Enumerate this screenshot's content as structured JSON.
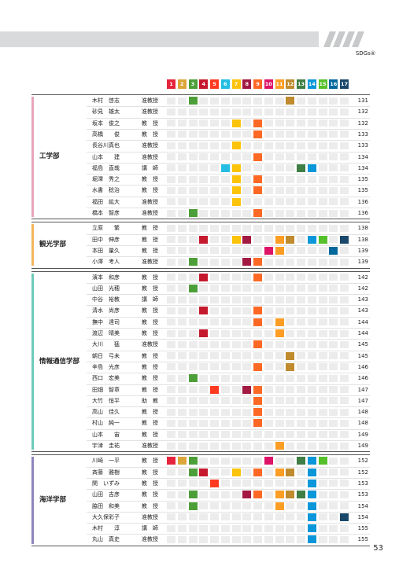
{
  "header": {
    "section": "SDGs④"
  },
  "sdg_numbers": [
    1,
    2,
    3,
    4,
    5,
    6,
    7,
    8,
    9,
    10,
    11,
    12,
    13,
    14,
    15,
    16,
    17
  ],
  "sdg_colors": [
    "#e5243b",
    "#dda63a",
    "#4c9f38",
    "#c5192d",
    "#ff3a21",
    "#26bde2",
    "#fcc30b",
    "#a21942",
    "#fd6925",
    "#dd1367",
    "#fd9d24",
    "#bf8b2e",
    "#3f7e44",
    "#0a97d9",
    "#56c02b",
    "#00689d",
    "#19486a"
  ],
  "departments": [
    {
      "name": "工学部",
      "color": "#e9a3bd",
      "members": [
        {
          "name": "木村　啓志",
          "title": "准教授",
          "goals": [
            3,
            12
          ],
          "page": 131
        },
        {
          "name": "砂見　雄太",
          "title": "准教授",
          "goals": [],
          "page": 132
        },
        {
          "name": "坂本　俊之",
          "title": "教　授",
          "goals": [
            7,
            9
          ],
          "page": 132
        },
        {
          "name": "高橋　　俊",
          "title": "教　授",
          "goals": [
            9
          ],
          "page": 133
        },
        {
          "name": "長谷川真也",
          "title": "准教授",
          "goals": [
            7
          ],
          "page": 133
        },
        {
          "name": "山本　　建",
          "title": "准教授",
          "goals": [
            9
          ],
          "page": 134
        },
        {
          "name": "福島　直哉",
          "title": "講　師",
          "goals": [
            6,
            7,
            13,
            14
          ],
          "page": 134
        },
        {
          "name": "堀澤　秀之",
          "title": "教　授",
          "goals": [
            7,
            9
          ],
          "page": 135
        },
        {
          "name": "水書　稔治",
          "title": "教　授",
          "goals": [
            7,
            9
          ],
          "page": 135
        },
        {
          "name": "福田　紘大",
          "title": "准教授",
          "goals": [
            7
          ],
          "page": 136
        },
        {
          "name": "橋本　智彦",
          "title": "准教授",
          "goals": [
            3,
            9
          ],
          "page": 136
        }
      ]
    },
    {
      "name": "観光学部",
      "color": "#f2b45e",
      "members": [
        {
          "name": "立原　　繁",
          "title": "教　授",
          "goals": [],
          "page": 138
        },
        {
          "name": "田中　伸彦",
          "title": "教　授",
          "goals": [
            4,
            7,
            8,
            11,
            12,
            14,
            15,
            17
          ],
          "page": 138
        },
        {
          "name": "本田　量久",
          "title": "教　授",
          "goals": [
            10,
            11,
            16
          ],
          "page": 139
        },
        {
          "name": "小澤　考人",
          "title": "准教授",
          "goals": [
            3,
            8,
            9
          ],
          "page": 139
        }
      ]
    },
    {
      "name": "情報通信学部",
      "color": "#6ccab9",
      "members": [
        {
          "name": "濱本　和彦",
          "title": "教　授",
          "goals": [
            4,
            9
          ],
          "page": 142
        },
        {
          "name": "山田　光穂",
          "title": "教　授",
          "goals": [
            3
          ],
          "page": 142
        },
        {
          "name": "中谷　裕教",
          "title": "講　師",
          "goals": [],
          "page": 143
        },
        {
          "name": "清水　尚彦",
          "title": "教　授",
          "goals": [
            4,
            9
          ],
          "page": 143
        },
        {
          "name": "撫中　達司",
          "title": "教　授",
          "goals": [
            9,
            11
          ],
          "page": 144
        },
        {
          "name": "渡辺　晴美",
          "title": "教　授",
          "goals": [
            4,
            11
          ],
          "page": 144
        },
        {
          "name": "大川　　猛",
          "title": "准教授",
          "goals": [
            9
          ],
          "page": 145
        },
        {
          "name": "朝日　弓未",
          "title": "教　授",
          "goals": [
            12
          ],
          "page": 145
        },
        {
          "name": "辛島　光彦",
          "title": "教　授",
          "goals": [
            9,
            12
          ],
          "page": 146
        },
        {
          "name": "西口　宏美",
          "title": "教　授",
          "goals": [
            3
          ],
          "page": 146
        },
        {
          "name": "田畑　智章",
          "title": "教　授",
          "goals": [
            5,
            8,
            9
          ],
          "page": 147
        },
        {
          "name": "大竹　恒平",
          "title": "助　教",
          "goals": [
            9
          ],
          "page": 147
        },
        {
          "name": "高山　佳久",
          "title": "教　授",
          "goals": [
            9
          ],
          "page": 148
        },
        {
          "name": "村山　純一",
          "title": "教　授",
          "goals": [
            9
          ],
          "page": 148
        },
        {
          "name": "山本　　宙",
          "title": "教　授",
          "goals": [],
          "page": 149
        },
        {
          "name": "宇津　圭祐",
          "title": "准教授",
          "goals": [
            11
          ],
          "page": 149
        }
      ]
    },
    {
      "name": "海洋学部",
      "color": "#9184c2",
      "members": [
        {
          "name": "川崎　一平",
          "title": "教　授",
          "goals": [
            1,
            2,
            3,
            10,
            13,
            14,
            15
          ],
          "page": 152
        },
        {
          "name": "斉藤　雅樹",
          "title": "教　授",
          "goals": [
            3,
            4,
            7,
            9,
            11,
            12,
            14
          ],
          "page": 152
        },
        {
          "name": "関　いずみ",
          "title": "教　授",
          "goals": [
            5,
            14
          ],
          "page": 153
        },
        {
          "name": "山田　吉彦",
          "title": "教　授",
          "goals": [
            3,
            8,
            9,
            11,
            12,
            13,
            14
          ],
          "page": 153
        },
        {
          "name": "脇田　和美",
          "title": "教　授",
          "goals": [
            3,
            11,
            14
          ],
          "page": 154
        },
        {
          "name": "大久保彩子",
          "title": "准教授",
          "goals": [
            14,
            17
          ],
          "page": 154
        },
        {
          "name": "木村　　淳",
          "title": "講　師",
          "goals": [
            14
          ],
          "page": 155
        },
        {
          "name": "丸山　真史",
          "title": "准教授",
          "goals": [
            14
          ],
          "page": 155
        }
      ]
    }
  ],
  "footer": {
    "page_number": 53
  }
}
